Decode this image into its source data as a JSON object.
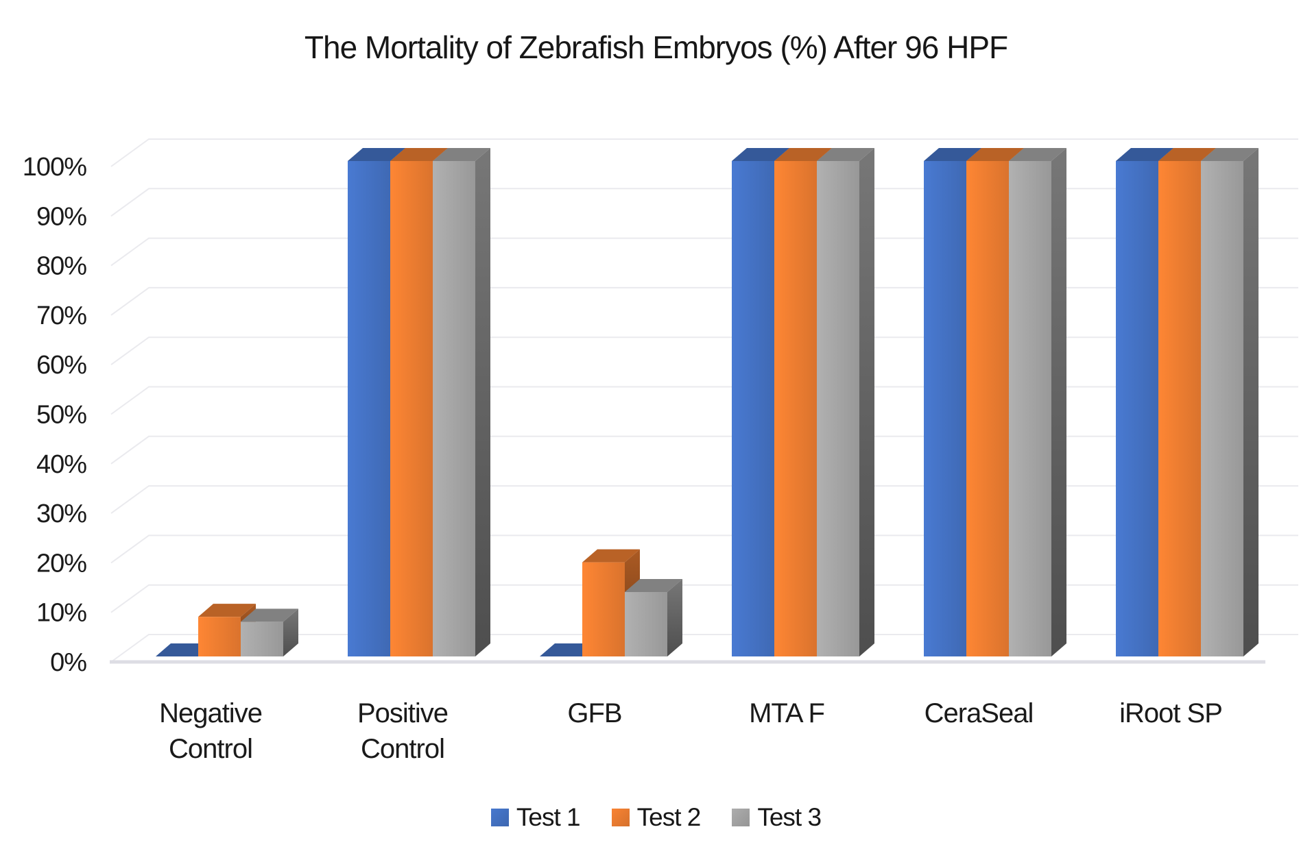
{
  "chart_data": {
    "type": "bar",
    "subtype": "3d-clustered-column",
    "title": "The Mortality of Zebrafish Embryos (%) After 96 HPF",
    "categories": [
      "Negative Control",
      "Positive Control",
      "GFB",
      "MTA F",
      "CeraSeal",
      "iRoot SP"
    ],
    "category_label_lines": [
      [
        "Negative",
        "Control"
      ],
      [
        "Positive",
        "Control"
      ],
      [
        "GFB"
      ],
      [
        "MTA F"
      ],
      [
        "CeraSeal"
      ],
      [
        "iRoot SP"
      ]
    ],
    "series": [
      {
        "name": "Test 1",
        "color": "#4472C4",
        "values": [
          0,
          100,
          0,
          100,
          100,
          100
        ]
      },
      {
        "name": "Test 2",
        "color": "#ED7D31",
        "values": [
          8,
          100,
          19,
          100,
          100,
          100
        ]
      },
      {
        "name": "Test 3",
        "color": "#A5A5A5",
        "values": [
          7,
          100,
          13,
          100,
          100,
          100
        ]
      }
    ],
    "yticks": [
      "0%",
      "10%",
      "20%",
      "30%",
      "40%",
      "50%",
      "60%",
      "70%",
      "80%",
      "90%",
      "100%"
    ],
    "ylim": [
      0,
      100
    ],
    "y_unit": "%",
    "xlabel": "",
    "ylabel": "",
    "grid": true,
    "gridline_color": "#EAEAEE",
    "floor_edge_color": "#DDDDE4",
    "text_color": "#1A1A1A",
    "legend_position": "bottom"
  }
}
